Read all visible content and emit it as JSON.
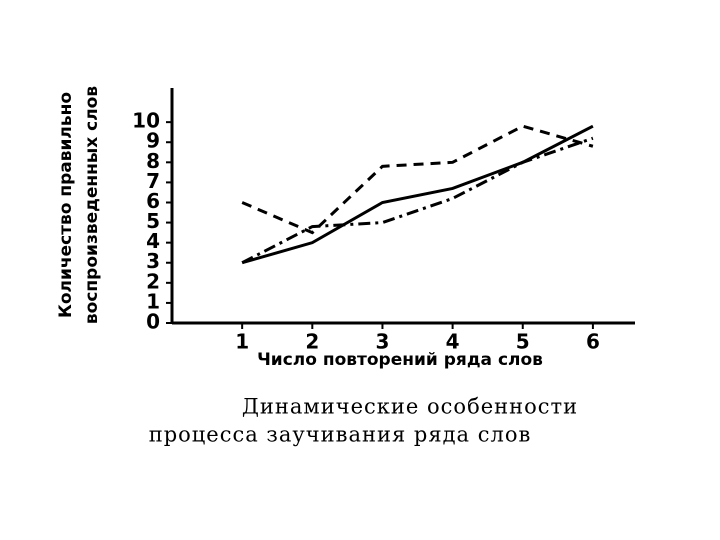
{
  "chart_data": {
    "type": "line",
    "x_label": "Число повторений ряда слов",
    "y_label": [
      "Количество правильно",
      "воспроизведенных слов"
    ],
    "caption": [
      "Динамические особенности",
      "процесса заучивания ряда слов"
    ],
    "x": [
      1,
      2,
      3,
      4,
      5,
      6
    ],
    "series": [
      {
        "color": "#000000",
        "line_style": "solid",
        "values": [
          3,
          4,
          6,
          6.7,
          8,
          9.8
        ]
      },
      {
        "color": "#000000",
        "line_style": "dashed",
        "values": [
          6,
          4.5,
          7.8,
          8,
          9.8,
          8.8
        ]
      },
      {
        "color": "#000000",
        "line_style": "dashdot",
        "values": [
          3,
          4.8,
          5,
          6.2,
          8,
          9.2
        ]
      }
    ],
    "xlim": [
      0,
      6.6
    ],
    "ylim": [
      0,
      11.7
    ],
    "xticks": [
      1,
      2,
      3,
      4,
      5,
      6
    ],
    "yticks": [
      0,
      1,
      2,
      3,
      4,
      5,
      6,
      7,
      8,
      9,
      10
    ]
  }
}
